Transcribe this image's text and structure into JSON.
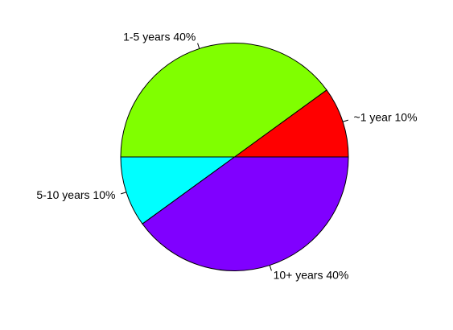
{
  "chart_data": {
    "type": "pie",
    "title": "",
    "slices": [
      {
        "label": "~1 year 10%",
        "value": 10,
        "color": "#FF0000"
      },
      {
        "label": "1-5 years 40%",
        "value": 40,
        "color": "#80FF00"
      },
      {
        "label": "5-10 years 10%",
        "value": 10,
        "color": "#00FFFF"
      },
      {
        "label": "10+ years 40%",
        "value": 40,
        "color": "#8000FF"
      }
    ],
    "start": "right",
    "direction": "counterclockwise",
    "outline_color": "#000000"
  }
}
